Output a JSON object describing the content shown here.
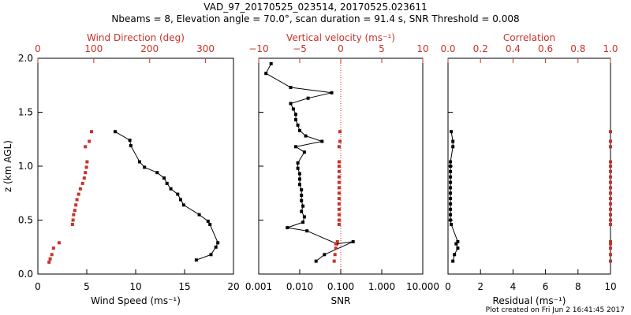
{
  "title_line1": "VAD_97_20170525_023514, 20170525.023611",
  "title_line2": "Nbeams = 8, Elevation angle = 70.0°, scan duration = 91.4 s, SNR Threshold = 0.008",
  "footer": "Plot created on Fri Jun  2 16:41:45 2017",
  "colors": {
    "axis": "#000000",
    "accent": "#c8322a"
  },
  "chart_data": [
    {
      "type": "scatter",
      "panel": "wind",
      "ylabel": "z (km AGL)",
      "ylim": [
        0,
        2
      ],
      "yticks": [
        "0.0",
        "0.5",
        "1.0",
        "1.5",
        "2.0"
      ],
      "xlabel": "Wind Speed (ms⁻¹)",
      "xlim": [
        0,
        20
      ],
      "xticks": [
        "0",
        "5",
        "10",
        "15",
        "20"
      ],
      "top_xlabel": "Wind Direction (deg)",
      "top_xlim": [
        0,
        350
      ],
      "top_xticks": [
        "0",
        "100",
        "200",
        "300"
      ],
      "series": [
        {
          "role": "wind speed",
          "color": "#000000",
          "z": [
            0.13,
            0.18,
            0.25,
            0.29,
            0.46,
            0.49,
            0.55,
            0.64,
            0.69,
            0.74,
            0.79,
            0.84,
            0.89,
            0.94,
            0.99,
            1.04,
            1.19,
            1.24,
            1.32
          ],
          "values": [
            16.2,
            17.7,
            18.2,
            18.4,
            17.6,
            17.4,
            16.5,
            14.9,
            14.6,
            14.3,
            13.6,
            13.2,
            12.9,
            12.2,
            10.9,
            10.4,
            9.5,
            9.4,
            7.9
          ]
        },
        {
          "role": "wind direction",
          "color": "#c8322a",
          "z": [
            0.11,
            0.14,
            0.18,
            0.24,
            0.29,
            0.46,
            0.5,
            0.55,
            0.59,
            0.64,
            0.69,
            0.74,
            0.79,
            0.84,
            0.89,
            0.94,
            0.99,
            1.04,
            1.18,
            1.23,
            1.32
          ],
          "values": [
            20,
            22,
            25,
            28,
            38,
            62,
            63,
            64,
            66,
            68,
            70,
            73,
            76,
            80,
            83,
            85,
            87,
            88,
            85,
            92,
            96
          ]
        }
      ]
    },
    {
      "type": "scatter",
      "panel": "snr",
      "xlabel": "SNR",
      "xscale": "log",
      "xlim": [
        0.001,
        10
      ],
      "xticks": [
        "0.001",
        "0.010",
        "0.100",
        "1.000",
        "10.000"
      ],
      "top_xlabel": "Vertical velocity (ms⁻¹)",
      "top_xlim": [
        -10,
        10
      ],
      "top_xticks": [
        "−10",
        "−5",
        "0",
        "5",
        "10"
      ],
      "zero_line": 0,
      "series": [
        {
          "role": "SNR",
          "color": "#000000",
          "z": [
            0.12,
            0.18,
            0.3,
            0.28,
            0.4,
            0.43,
            0.48,
            0.53,
            0.58,
            0.63,
            0.68,
            0.73,
            0.78,
            0.83,
            0.88,
            0.93,
            0.98,
            1.03,
            1.13,
            1.18,
            1.23,
            1.28,
            1.33,
            1.38,
            1.43,
            1.48,
            1.53,
            1.58,
            1.63,
            1.68,
            1.73,
            1.86,
            1.95
          ],
          "values": [
            0.025,
            0.04,
            0.2,
            0.08,
            0.015,
            0.005,
            0.012,
            0.013,
            0.011,
            0.012,
            0.011,
            0.011,
            0.011,
            0.01,
            0.01,
            0.01,
            0.009,
            0.009,
            0.013,
            0.008,
            0.035,
            0.014,
            0.01,
            0.009,
            0.008,
            0.008,
            0.007,
            0.006,
            0.016,
            0.06,
            0.006,
            0.0015,
            0.002
          ]
        },
        {
          "role": "vertical velocity",
          "color": "#c8322a",
          "z": [
            0.12,
            0.18,
            0.24,
            0.28,
            0.3,
            0.46,
            0.5,
            0.55,
            0.6,
            0.65,
            0.7,
            0.75,
            0.8,
            0.85,
            0.9,
            0.95,
            1.0,
            1.04,
            1.18,
            1.23,
            1.32
          ],
          "values": [
            -0.8,
            -0.7,
            -0.6,
            -0.6,
            -0.4,
            -0.2,
            -0.2,
            -0.2,
            -0.2,
            -0.2,
            -0.2,
            -0.2,
            -0.2,
            -0.2,
            -0.2,
            -0.2,
            -0.2,
            -0.2,
            -0.2,
            -0.1,
            -0.1
          ]
        }
      ]
    },
    {
      "type": "scatter",
      "panel": "residual",
      "xlabel": "Residual (ms⁻¹)",
      "xlim": [
        0,
        10
      ],
      "xticks": [
        "0",
        "2",
        "4",
        "6",
        "8",
        "10"
      ],
      "top_xlabel": "Correlation",
      "top_xlim": [
        0,
        1
      ],
      "top_xticks": [
        "0.0",
        "0.2",
        "0.4",
        "0.6",
        "0.8",
        "1.0"
      ],
      "series": [
        {
          "role": "residual",
          "color": "#000000",
          "z": [
            0.12,
            0.18,
            0.24,
            0.28,
            0.3,
            0.46,
            0.5,
            0.55,
            0.6,
            0.65,
            0.7,
            0.75,
            0.8,
            0.85,
            0.9,
            0.95,
            1.0,
            1.04,
            1.18,
            1.23,
            1.32
          ],
          "values": [
            0.3,
            0.4,
            0.6,
            0.5,
            0.6,
            0.2,
            0.15,
            0.15,
            0.15,
            0.15,
            0.15,
            0.15,
            0.15,
            0.15,
            0.15,
            0.15,
            0.15,
            0.15,
            0.3,
            0.3,
            0.2
          ]
        },
        {
          "role": "correlation",
          "color": "#c8322a",
          "z": [
            0.12,
            0.18,
            0.24,
            0.28,
            0.3,
            0.46,
            0.5,
            0.55,
            0.6,
            0.65,
            0.7,
            0.75,
            0.8,
            0.85,
            0.9,
            0.95,
            1.0,
            1.04,
            1.18,
            1.23,
            1.32
          ],
          "values": [
            1.0,
            1.0,
            1.0,
            1.0,
            1.0,
            1.0,
            1.0,
            1.0,
            1.0,
            1.0,
            1.0,
            1.0,
            1.0,
            1.0,
            1.0,
            1.0,
            1.0,
            1.0,
            1.0,
            1.0,
            1.0
          ]
        }
      ]
    }
  ]
}
